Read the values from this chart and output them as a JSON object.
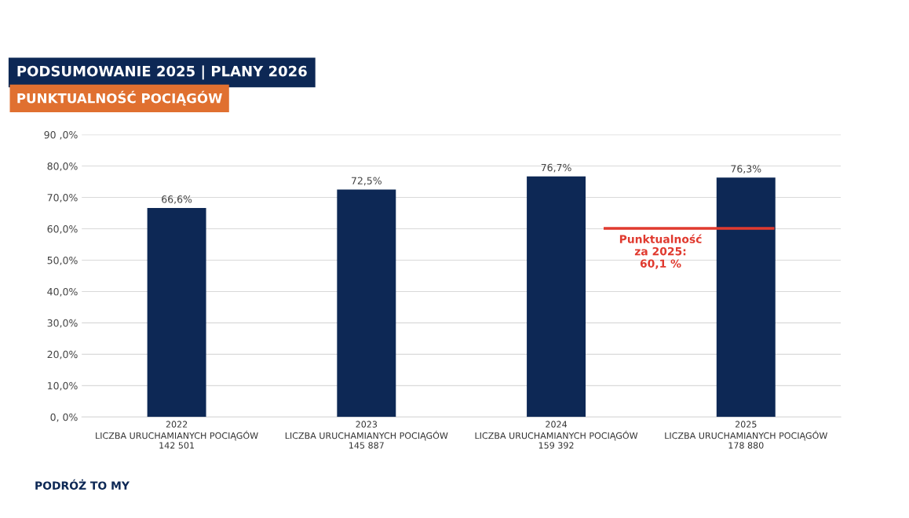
{
  "chart_data": {
    "type": "bar",
    "title": "PODSUMOWANIE 2025 | PLANY 2026",
    "subtitle": "PUNKTUALNOŚĆ POCIĄGÓW",
    "categories": [
      "2022\nLICZBA URUCHAMIANYCH POCIĄGÓW\n142 501",
      "2023\nLICZBA URUCHAMIANYCH POCIĄGÓW\n145 887",
      "2024\nLICZBA URUCHAMIANYCH POCIĄGÓW\n159 392",
      "2025\nLICZBA URUCHAMIANYCH POCIĄGÓW\n178 880"
    ],
    "values": [
      66.6,
      72.5,
      76.7,
      76.3
    ],
    "value_labels": [
      "66,6%",
      "72,5%",
      "76,7%",
      "76,3%"
    ],
    "color": "#0d2855",
    "ylim": [
      0,
      90
    ],
    "yticks": [
      {
        "value": 0,
        "label": "0, 0%"
      },
      {
        "value": 10,
        "label": "10,0%"
      },
      {
        "value": 20,
        "label": "20,0%"
      },
      {
        "value": 30,
        "label": "30,0%"
      },
      {
        "value": 40,
        "label": "40,0%"
      },
      {
        "value": 50,
        "label": "50,0%"
      },
      {
        "value": 60,
        "label": "60,0%"
      },
      {
        "value": 70,
        "label": "70,0%"
      },
      {
        "value": 80,
        "label": "80,0%"
      },
      {
        "value": 90,
        "label": "90 ,0%"
      }
    ],
    "grid": "y",
    "legend": false,
    "ref_lines": [
      {
        "axis": "y",
        "value": 60.1,
        "label": "Punktualność\nza 2025:\n60,1 %",
        "color": "#e03a2f"
      }
    ],
    "annotations": [
      "PODRÓŻ TO MY"
    ]
  }
}
